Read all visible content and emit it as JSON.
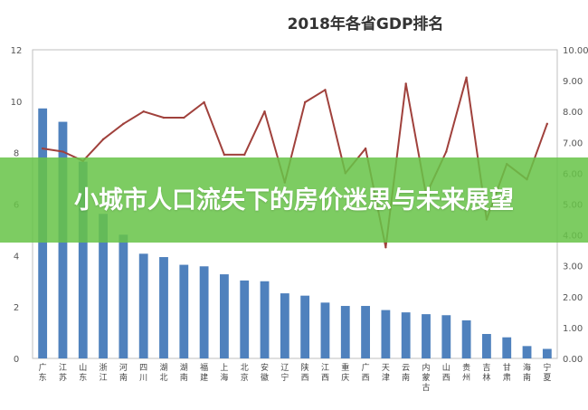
{
  "chart_data": {
    "type": "bar",
    "title": "2018年各省GDP排名",
    "categories": [
      "广东",
      "江苏",
      "山东",
      "浙江",
      "河南",
      "四川",
      "湖北",
      "湖南",
      "福建",
      "上海",
      "北京",
      "安徽",
      "辽宁",
      "陕西",
      "江西",
      "重庆",
      "广西",
      "天津",
      "云南",
      "内蒙古",
      "山西",
      "贵州",
      "吉林",
      "甘肃",
      "海南",
      "宁夏"
    ],
    "series": [
      {
        "type": "bar",
        "axis": "left",
        "color": "#4f81bd",
        "values": [
          9.72,
          9.2,
          7.65,
          5.62,
          4.81,
          4.07,
          3.94,
          3.64,
          3.58,
          3.27,
          3.03,
          3.0,
          2.53,
          2.44,
          2.17,
          2.04,
          2.04,
          1.88,
          1.79,
          1.72,
          1.68,
          1.48,
          0.95,
          0.82,
          0.48,
          0.37
        ]
      },
      {
        "type": "line",
        "axis": "right",
        "color": "#a0413c",
        "values": [
          6.8,
          6.7,
          6.4,
          7.1,
          7.6,
          8.0,
          7.8,
          7.8,
          8.3,
          6.6,
          6.6,
          8.0,
          5.7,
          8.3,
          8.7,
          6.0,
          6.8,
          3.6,
          8.9,
          5.3,
          6.7,
          9.1,
          4.5,
          6.3,
          5.8,
          7.6
        ]
      }
    ],
    "y_left": {
      "min": 0,
      "max": 12,
      "ticks": [
        "0",
        "2",
        "4",
        "6",
        "8",
        "10",
        "12"
      ]
    },
    "y_right": {
      "min": 0,
      "max": 10,
      "ticks": [
        "0.00",
        "1.00",
        "2.00",
        "3.00",
        "4.00",
        "5.00",
        "6.00",
        "7.00",
        "8.00",
        "9.00",
        "10.00"
      ]
    },
    "grid": false
  },
  "overlay": {
    "title": "小城市人口流失下的房价迷思与未来展望"
  },
  "colors": {
    "bar": "#4f81bd",
    "line": "#a0413c",
    "overlay": "#68c448"
  }
}
